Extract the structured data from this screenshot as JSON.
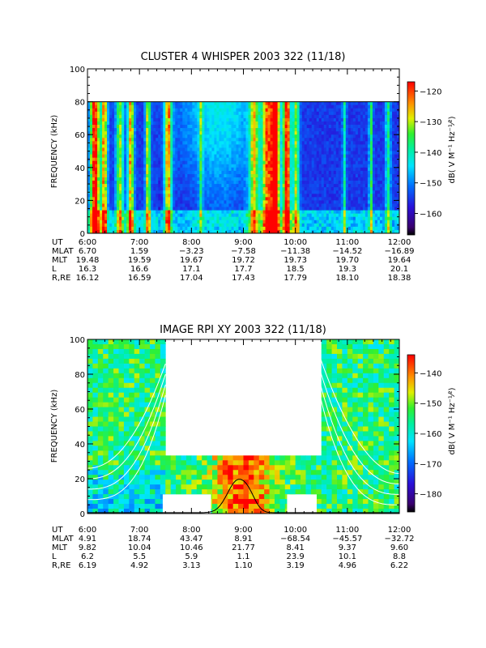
{
  "chart_data": [
    {
      "type": "heatmap",
      "title": "CLUSTER 4 WHISPER 2003 322 (11/18)",
      "ylabel": "FREQUENCY (kHz)",
      "ylim": [
        0,
        100
      ],
      "yticks": [
        "0",
        "20",
        "40",
        "60",
        "80",
        "100"
      ],
      "xlim": [
        "6:00",
        "12:00"
      ],
      "data_ymax": 80,
      "colorbar": {
        "label": "dB( V M⁻¹ Hz⁻¹⁄²)",
        "ticks": [
          "-120",
          "-130",
          "-140",
          "-150",
          "-160"
        ],
        "range": [
          -167,
          -117
        ]
      },
      "ephemeris": {
        "labels": [
          "UT",
          "MLAT",
          "MLT",
          "L",
          "R,RE"
        ],
        "columns": [
          {
            "ut": "6:00",
            "mlat": "6.70",
            "mlt": "19.48",
            "l": "16.3",
            "re": "16.12"
          },
          {
            "ut": "7:00",
            "mlat": "1.59",
            "mlt": "19.59",
            "l": "16.6",
            "re": "16.59"
          },
          {
            "ut": "8:00",
            "mlat": "-3.23",
            "mlt": "19.67",
            "l": "17.1",
            "re": "17.04"
          },
          {
            "ut": "9:00",
            "mlat": "-7.58",
            "mlt": "19.72",
            "l": "17.7",
            "re": "17.43"
          },
          {
            "ut": "10:00",
            "mlat": "-11.38",
            "mlt": "19.73",
            "l": "18.5",
            "re": "17.79"
          },
          {
            "ut": "11:00",
            "mlat": "-14.52",
            "mlt": "19.70",
            "l": "19.3",
            "re": "18.10"
          },
          {
            "ut": "12:00",
            "mlat": "-16.89",
            "mlt": "19.64",
            "l": "20.1",
            "re": "18.38"
          }
        ]
      }
    },
    {
      "type": "heatmap",
      "title": "IMAGE RPI XY 2003 322 (11/18)",
      "ylabel": "FREQUENCY (kHz)",
      "ylim": [
        0,
        100
      ],
      "yticks": [
        "0",
        "20",
        "40",
        "60",
        "80",
        "100"
      ],
      "xlim": [
        "6:00",
        "12:00"
      ],
      "colorbar": {
        "label": "dB( V M⁻¹ Hz⁻¹⁄²)",
        "ticks": [
          "-140",
          "-150",
          "-160",
          "-170",
          "-180"
        ],
        "range": [
          -186,
          -134
        ]
      },
      "ephemeris": {
        "labels": [
          "UT",
          "MLAT",
          "MLT",
          "L",
          "R,RE"
        ],
        "columns": [
          {
            "ut": "6:00",
            "mlat": "4.91",
            "mlt": "9.82",
            "l": "6.2",
            "re": "6.19"
          },
          {
            "ut": "7:00",
            "mlat": "18.74",
            "mlt": "10.04",
            "l": "5.5",
            "re": "4.92"
          },
          {
            "ut": "8:00",
            "mlat": "43.47",
            "mlt": "10.46",
            "l": "5.9",
            "re": "3.13"
          },
          {
            "ut": "9:00",
            "mlat": "8.91",
            "mlt": "21.77",
            "l": "1.1",
            "re": "1.10"
          },
          {
            "ut": "10:00",
            "mlat": "-68.54",
            "mlt": "8.41",
            "l": "23.9",
            "re": "3.19"
          },
          {
            "ut": "11:00",
            "mlat": "-45.57",
            "mlt": "9.37",
            "l": "10.1",
            "re": "4.96"
          },
          {
            "ut": "12:00",
            "mlat": "-32.72",
            "mlt": "9.60",
            "l": "8.8",
            "re": "6.22"
          }
        ]
      }
    }
  ]
}
